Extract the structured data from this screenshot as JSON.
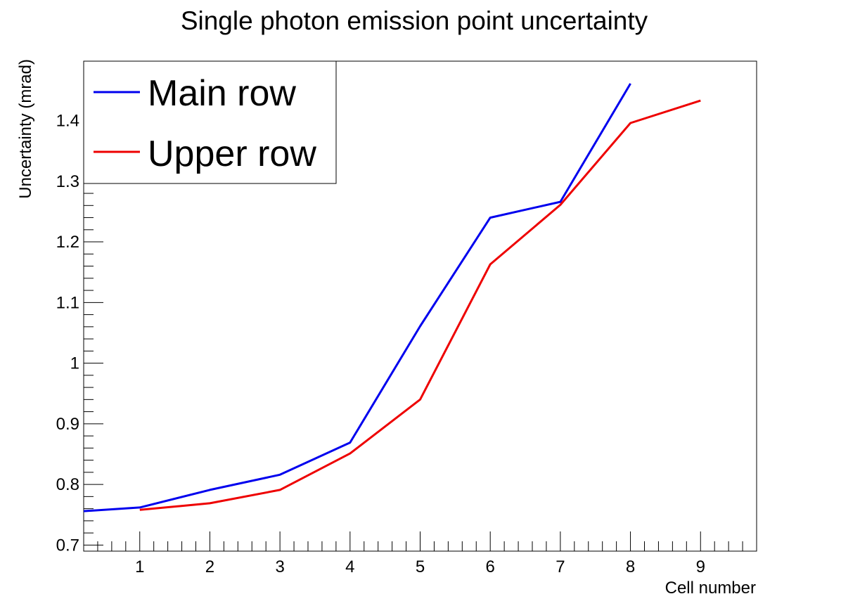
{
  "chart_data": {
    "type": "line",
    "title": "Single photon emission point uncertainty",
    "xlabel": "Cell number",
    "ylabel": "Uncertainty (mrad)",
    "xlim": [
      0.2,
      9.8
    ],
    "ylim": [
      0.69,
      1.498
    ],
    "x_ticks": [
      1,
      2,
      3,
      4,
      5,
      6,
      7,
      8,
      9
    ],
    "x_tick_labels": [
      "1",
      "2",
      "3",
      "4",
      "5",
      "6",
      "7",
      "8",
      "9"
    ],
    "y_ticks": [
      0.7,
      0.8,
      0.9,
      1.0,
      1.1,
      1.2,
      1.3,
      1.4
    ],
    "y_tick_labels": [
      "0.7",
      "0.8",
      "0.9",
      "1",
      "1.1",
      "1.2",
      "1.3",
      "1.4"
    ],
    "legend_position": "top-left",
    "grid": false,
    "series": [
      {
        "name": "Main row",
        "color": "#0000ee",
        "x": [
          0.2,
          1,
          2,
          3,
          4,
          5,
          6,
          7,
          8
        ],
        "y": [
          0.756,
          0.762,
          0.791,
          0.816,
          0.869,
          1.061,
          1.24,
          1.266,
          1.461
        ]
      },
      {
        "name": "Upper row",
        "color": "#ee0000",
        "x": [
          1,
          2,
          3,
          4,
          5,
          6,
          7,
          8,
          9
        ],
        "y": [
          0.758,
          0.769,
          0.791,
          0.851,
          0.94,
          1.163,
          1.261,
          1.396,
          1.433
        ]
      }
    ]
  }
}
